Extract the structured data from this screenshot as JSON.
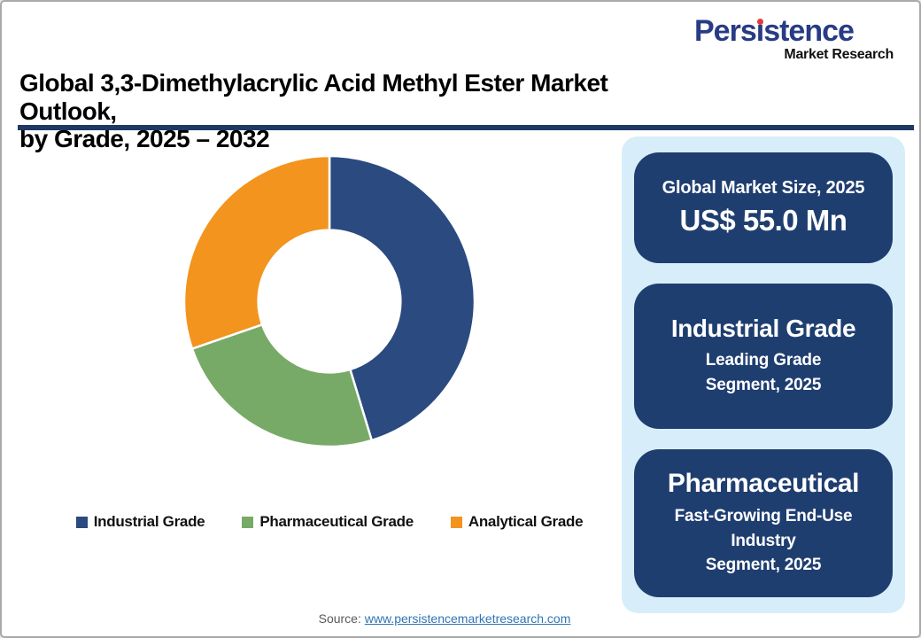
{
  "logo": {
    "name": "Persistence",
    "name_parts": {
      "pre": "Pers",
      "i_glyph": "ı",
      "post": "stence"
    },
    "tagline": "Market Research",
    "brand_color": "#283b85",
    "dot_color": "#e23b3e"
  },
  "header": {
    "title_line1": "Global 3,3-Dimethylacrylic Acid Methyl Ester Market Outlook,",
    "title_line2": "by Grade, 2025 – 2032"
  },
  "chart_data": {
    "type": "pie",
    "subtype": "donut",
    "title": "Global 3,3-Dimethylacrylic Acid Methyl Ester Market Outlook, by Grade, 2025 – 2032",
    "categories": [
      "Industrial Grade",
      "Pharmaceutical Grade",
      "Analytical Grade"
    ],
    "values": [
      45.3,
      24.4,
      30.3
    ],
    "unit": "% share (estimated from arc angles)",
    "colors": [
      "#2a4a80",
      "#77aa67",
      "#f2941e"
    ],
    "start_angle_deg": 0,
    "direction": "clockwise",
    "inner_radius_ratio": 0.49,
    "legend_position": "bottom",
    "data_labels": false
  },
  "sidebar": {
    "panel_color": "#d7eefa",
    "card_color": "#1f3e70",
    "cards": [
      {
        "title": "Global Market Size, 2025",
        "value": "US$ 55.0 Mn"
      },
      {
        "title": "Industrial Grade",
        "line1": "Leading Grade",
        "line2": "Segment, 2025"
      },
      {
        "title": "Pharmaceutical",
        "line1": "Fast-Growing End-Use",
        "line2": "Industry",
        "line3": "Segment, 2025"
      }
    ]
  },
  "footer": {
    "source_label": "Source:",
    "source_link": "www.persistencemarketresearch.com"
  }
}
